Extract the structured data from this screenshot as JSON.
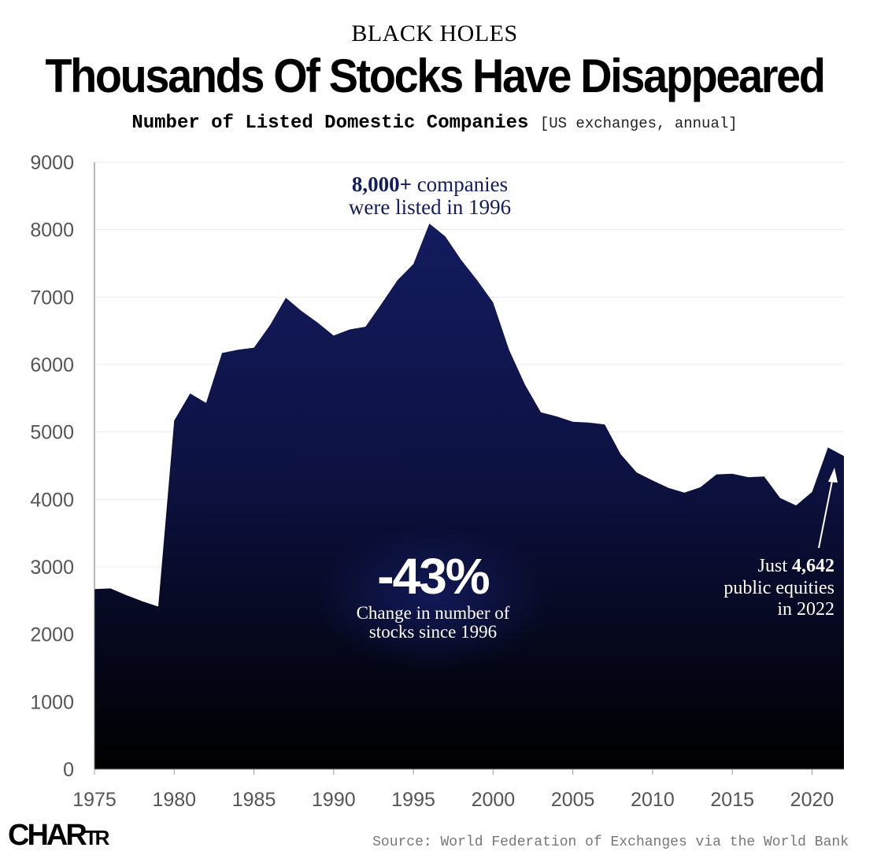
{
  "header": {
    "kicker": "BLACK HOLES",
    "title": "Thousands Of Stocks Have Disappeared",
    "subtitle_main": "Number of Listed Domestic Companies",
    "subtitle_note": "[US exchanges, annual]"
  },
  "chart_data": {
    "type": "area",
    "title": "Number of Listed Domestic Companies",
    "xlabel": "",
    "ylabel": "",
    "xlim": [
      1975,
      2022
    ],
    "ylim": [
      0,
      9000
    ],
    "x_ticks": [
      1975,
      1980,
      1985,
      1990,
      1995,
      2000,
      2005,
      2010,
      2015,
      2020
    ],
    "y_ticks": [
      0,
      1000,
      2000,
      3000,
      4000,
      5000,
      6000,
      7000,
      8000,
      9000
    ],
    "grid": true,
    "series": [
      {
        "name": "Listed domestic companies",
        "x": [
          1975,
          1976,
          1977,
          1978,
          1979,
          1980,
          1981,
          1982,
          1983,
          1984,
          1985,
          1986,
          1987,
          1988,
          1989,
          1990,
          1991,
          1992,
          1993,
          1994,
          1995,
          1996,
          1997,
          1998,
          1999,
          2000,
          2001,
          2002,
          2003,
          2004,
          2005,
          2006,
          2007,
          2008,
          2009,
          2010,
          2011,
          2012,
          2013,
          2014,
          2015,
          2016,
          2017,
          2018,
          2019,
          2020,
          2021,
          2022
        ],
        "values": [
          2670,
          2680,
          2580,
          2490,
          2410,
          5170,
          5570,
          5430,
          6170,
          6220,
          6250,
          6580,
          6990,
          6790,
          6620,
          6430,
          6520,
          6560,
          6900,
          7250,
          7490,
          8090,
          7900,
          7550,
          7250,
          6920,
          6220,
          5700,
          5290,
          5230,
          5150,
          5140,
          5110,
          4670,
          4400,
          4280,
          4170,
          4100,
          4180,
          4370,
          4380,
          4330,
          4340,
          4020,
          3910,
          4110,
          4770,
          4642
        ]
      }
    ],
    "annotations": {
      "peak_bold": "8,000+",
      "peak_rest": " companies",
      "peak_line2": "were listed in 1996",
      "change_value": "-43%",
      "change_line1": "Change in number of",
      "change_line2": "stocks since 1996",
      "end_line1_pre": "Just ",
      "end_line1_bold": "4,642",
      "end_line2": "public equities",
      "end_line3": "in 2022"
    }
  },
  "footer": {
    "logo_main": "CHAR",
    "logo_small": "TR",
    "source": "Source: World Federation of Exchanges via the World Bank"
  },
  "colors": {
    "area_top": "#131b5e",
    "area_bottom": "#000000",
    "peak_text": "#141c60",
    "grid": "#ececec",
    "axis_text": "#555555"
  }
}
